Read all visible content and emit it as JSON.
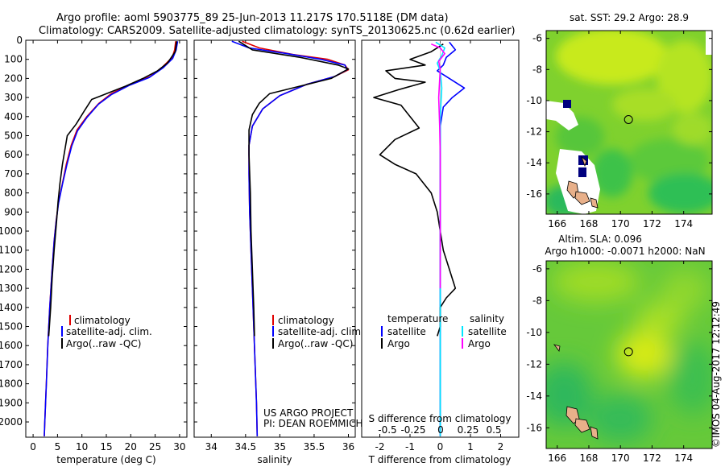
{
  "header": {
    "title_line1": "Argo profile: aoml 5903775_89 25-Jun-2013 11.217S 170.5118E (DM data)",
    "title_line2": "Climatology: CARS2009. Satellite-adjusted climatology: synTS_20130625.nc (0.62d earlier)"
  },
  "colors": {
    "argo": "#000000",
    "climatology": "#e00000",
    "satellite": "#0000ff",
    "sat_salinity": "#00e5ff",
    "argo_salinity": "#ff00ff"
  },
  "chart_data": [
    {
      "type": "line",
      "id": "temperature",
      "xlabel": "temperature (deg C)",
      "xlim": [
        -1.5,
        31.5
      ],
      "xticks": [
        0,
        5,
        10,
        15,
        20,
        25,
        30
      ],
      "ylim": [
        2080,
        0
      ],
      "yticks": [
        0,
        100,
        200,
        300,
        400,
        500,
        600,
        700,
        800,
        900,
        1000,
        1100,
        1200,
        1300,
        1400,
        1500,
        1600,
        1700,
        1800,
        1900,
        2000
      ],
      "legend": [
        "climatology",
        "satellite-adj. clim.",
        "Argo(..raw -QC)"
      ],
      "series": [
        {
          "name": "climatology",
          "color": "#e00000",
          "points": [
            [
              29.2,
              5
            ],
            [
              29.0,
              50
            ],
            [
              28.5,
              90
            ],
            [
              26.5,
              140
            ],
            [
              24.0,
              190
            ],
            [
              20.0,
              230
            ],
            [
              16.0,
              280
            ],
            [
              13.5,
              330
            ],
            [
              11.0,
              400
            ],
            [
              9.0,
              470
            ],
            [
              7.8,
              550
            ],
            [
              6.8,
              650
            ],
            [
              6.0,
              750
            ],
            [
              5.2,
              850
            ],
            [
              4.7,
              950
            ],
            [
              4.3,
              1050
            ],
            [
              3.9,
              1200
            ],
            [
              3.4,
              1400
            ],
            [
              3.0,
              1600
            ],
            [
              2.7,
              1800
            ],
            [
              2.4,
              2000
            ],
            [
              2.3,
              2075
            ]
          ]
        },
        {
          "name": "satellite-adj. clim.",
          "color": "#0000ff",
          "points": [
            [
              29.6,
              5
            ],
            [
              29.3,
              50
            ],
            [
              28.6,
              95
            ],
            [
              26.6,
              145
            ],
            [
              23.8,
              195
            ],
            [
              19.8,
              235
            ],
            [
              16.0,
              285
            ],
            [
              13.4,
              335
            ],
            [
              11.0,
              405
            ],
            [
              9.1,
              475
            ],
            [
              7.9,
              555
            ],
            [
              6.9,
              655
            ],
            [
              6.0,
              755
            ],
            [
              5.2,
              855
            ],
            [
              4.7,
              955
            ],
            [
              4.3,
              1055
            ],
            [
              3.9,
              1205
            ],
            [
              3.4,
              1405
            ],
            [
              3.0,
              1605
            ],
            [
              2.7,
              1805
            ],
            [
              2.4,
              2000
            ],
            [
              2.3,
              2075
            ]
          ]
        },
        {
          "name": "Argo(..raw -QC)",
          "color": "#000000",
          "points": [
            [
              29.4,
              5
            ],
            [
              29.1,
              60
            ],
            [
              27.5,
              120
            ],
            [
              25.5,
              160
            ],
            [
              22.5,
              200
            ],
            [
              19.0,
              240
            ],
            [
              15.0,
              280
            ],
            [
              12.0,
              310
            ],
            [
              10.5,
              370
            ],
            [
              8.8,
              440
            ],
            [
              7.0,
              500
            ],
            [
              6.6,
              560
            ],
            [
              6.0,
              650
            ],
            [
              5.5,
              750
            ],
            [
              5.1,
              850
            ],
            [
              4.8,
              950
            ],
            [
              4.3,
              1100
            ],
            [
              3.9,
              1250
            ],
            [
              3.6,
              1400
            ],
            [
              3.2,
              1550
            ]
          ]
        }
      ]
    },
    {
      "type": "line",
      "id": "salinity",
      "xlabel": "salinity",
      "xlim": [
        33.75,
        36.1
      ],
      "xticks": [
        34,
        34.5,
        35,
        35.5,
        36
      ],
      "ylim": [
        2080,
        0
      ],
      "legend": [
        "climatology",
        "satellite-adj. clim.",
        "Argo(..raw -QC)"
      ],
      "credit": [
        "US ARGO PROJECT",
        "PI: DEAN ROEMMICH"
      ],
      "series": [
        {
          "name": "climatology",
          "color": "#e00000",
          "points": [
            [
              34.45,
              5
            ],
            [
              34.7,
              40
            ],
            [
              35.2,
              75
            ],
            [
              35.7,
              100
            ],
            [
              35.95,
              130
            ],
            [
              36.0,
              155
            ],
            [
              35.8,
              190
            ],
            [
              35.4,
              230
            ],
            [
              35.0,
              290
            ],
            [
              34.75,
              360
            ],
            [
              34.6,
              450
            ],
            [
              34.55,
              550
            ],
            [
              34.55,
              700
            ],
            [
              34.56,
              900
            ],
            [
              34.58,
              1100
            ],
            [
              34.6,
              1300
            ],
            [
              34.62,
              1500
            ],
            [
              34.64,
              1700
            ],
            [
              34.66,
              1900
            ],
            [
              34.67,
              2075
            ]
          ]
        },
        {
          "name": "satellite-adj. clim.",
          "color": "#0000ff",
          "points": [
            [
              34.3,
              5
            ],
            [
              34.55,
              40
            ],
            [
              35.1,
              70
            ],
            [
              35.6,
              100
            ],
            [
              35.95,
              130
            ],
            [
              35.98,
              155
            ],
            [
              35.8,
              190
            ],
            [
              35.4,
              230
            ],
            [
              35.0,
              290
            ],
            [
              34.75,
              360
            ],
            [
              34.6,
              450
            ],
            [
              34.55,
              550
            ],
            [
              34.55,
              700
            ],
            [
              34.56,
              900
            ],
            [
              34.58,
              1100
            ],
            [
              34.6,
              1300
            ],
            [
              34.62,
              1500
            ],
            [
              34.64,
              1700
            ],
            [
              34.66,
              1900
            ],
            [
              34.67,
              2075
            ]
          ]
        },
        {
          "name": "Argo(..raw -QC)",
          "color": "#000000",
          "points": [
            [
              34.4,
              5
            ],
            [
              34.6,
              50
            ],
            [
              35.3,
              90
            ],
            [
              35.85,
              130
            ],
            [
              36.0,
              150
            ],
            [
              35.75,
              200
            ],
            [
              35.3,
              240
            ],
            [
              34.85,
              280
            ],
            [
              34.7,
              330
            ],
            [
              34.6,
              390
            ],
            [
              34.55,
              470
            ],
            [
              34.55,
              600
            ],
            [
              34.57,
              800
            ],
            [
              34.58,
              1000
            ],
            [
              34.6,
              1200
            ],
            [
              34.62,
              1400
            ],
            [
              34.63,
              1550
            ]
          ]
        }
      ]
    },
    {
      "type": "line",
      "id": "difference",
      "xlabel": "T difference from climatology",
      "xlabel_top": "S difference from climatology",
      "xlim": [
        -2.6,
        2.6
      ],
      "xticks": [
        -2,
        -1,
        0,
        1,
        2
      ],
      "xticks_s": [
        "-0.5",
        "-0.25",
        "0",
        "0.25",
        "0.5"
      ],
      "ylim": [
        2080,
        0
      ],
      "legend_headers": [
        "temperature",
        "salinity"
      ],
      "legend": [
        "satellite",
        "Argo",
        "satellite",
        "Argo"
      ],
      "series": [
        {
          "name": "T satellite",
          "color": "#0000ff",
          "points": [
            [
              0.3,
              10
            ],
            [
              0.5,
              50
            ],
            [
              0.2,
              90
            ],
            [
              0.1,
              130
            ],
            [
              -0.1,
              160
            ],
            [
              0.3,
              200
            ],
            [
              0.8,
              250
            ],
            [
              0.4,
              300
            ],
            [
              0.1,
              350
            ],
            [
              0.0,
              450
            ],
            [
              0.0,
              600
            ],
            [
              0.0,
              900
            ],
            [
              0.0,
              1200
            ],
            [
              0.0,
              1500
            ],
            [
              0.0,
              2075
            ]
          ]
        },
        {
          "name": "T Argo",
          "color": "#000000",
          "points": [
            [
              0.1,
              20
            ],
            [
              -0.3,
              60
            ],
            [
              -1.0,
              100
            ],
            [
              -0.5,
              130
            ],
            [
              -1.8,
              160
            ],
            [
              -1.5,
              200
            ],
            [
              -0.5,
              220
            ],
            [
              -1.4,
              260
            ],
            [
              -2.2,
              300
            ],
            [
              -1.3,
              340
            ],
            [
              -1.0,
              400
            ],
            [
              -0.7,
              460
            ],
            [
              -1.5,
              520
            ],
            [
              -2.0,
              600
            ],
            [
              -1.5,
              650
            ],
            [
              -0.8,
              700
            ],
            [
              -0.3,
              800
            ],
            [
              -0.1,
              900
            ],
            [
              0.0,
              1000
            ],
            [
              0.1,
              1100
            ],
            [
              0.3,
              1200
            ],
            [
              0.5,
              1300
            ],
            [
              0.2,
              1350
            ],
            [
              0.0,
              1400
            ],
            [
              0.0,
              1500
            ],
            [
              -0.1,
              1550
            ]
          ]
        },
        {
          "name": "S satellite",
          "color": "#00e5ff",
          "points": [
            [
              -0.15,
              10
            ],
            [
              0.15,
              40
            ],
            [
              0.05,
              80
            ],
            [
              -0.1,
              120
            ],
            [
              0.0,
              160
            ],
            [
              0.05,
              250
            ],
            [
              0.0,
              400
            ],
            [
              0.0,
              800
            ],
            [
              0.0,
              1400
            ],
            [
              0.0,
              2075
            ]
          ]
        },
        {
          "name": "S Argo",
          "color": "#ff00ff",
          "points": [
            [
              -0.3,
              20
            ],
            [
              0.0,
              40
            ],
            [
              0.15,
              70
            ],
            [
              -0.05,
              110
            ],
            [
              0.0,
              150
            ],
            [
              -0.05,
              300
            ],
            [
              -0.02,
              450
            ],
            [
              0.0,
              600
            ],
            [
              0.0,
              900
            ],
            [
              0.0,
              1300
            ]
          ]
        }
      ]
    },
    {
      "type": "heatmap",
      "id": "sst_map",
      "title": "sat. SST: 29.2 Argo: 28.9",
      "xlim": [
        165.3,
        175.8
      ],
      "ylim": [
        -17.3,
        -5.5
      ],
      "xticks": [
        166,
        168,
        170,
        172,
        174
      ],
      "yticks": [
        -6,
        -8,
        -10,
        -12,
        -14,
        -16
      ],
      "marker": [
        170.51,
        -11.22
      ]
    },
    {
      "type": "heatmap",
      "id": "sla_map",
      "title_line1": "Altim. SLA: 0.096",
      "title_line2": "Argo h1000: -0.0071 h2000: NaN",
      "xlim": [
        165.3,
        175.8
      ],
      "ylim": [
        -17.3,
        -5.5
      ],
      "xticks": [
        166,
        168,
        170,
        172,
        174
      ],
      "yticks": [
        -6,
        -8,
        -10,
        -12,
        -14,
        -16
      ],
      "marker": [
        170.51,
        -11.22
      ]
    }
  ],
  "footer": {
    "credit_vertical": "©IMOS 04-Aug-2017 12:12:49"
  }
}
